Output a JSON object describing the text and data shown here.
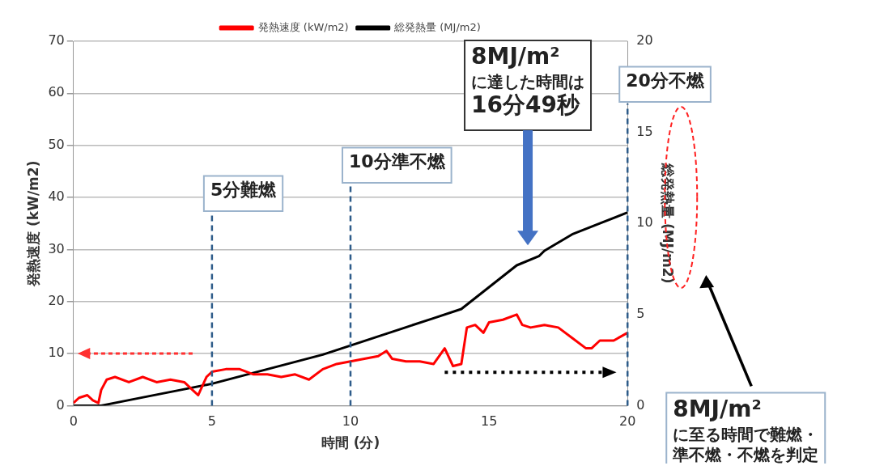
{
  "chart_data": {
    "type": "line",
    "xlabel": "時間 (分)",
    "ylabel": "発熱速度 (kW/m2)",
    "y2label": "総発熱量 (MJ/m2)",
    "xlim": [
      0,
      20
    ],
    "xticks": [
      0,
      5,
      10,
      15,
      20
    ],
    "ylim": [
      0,
      70
    ],
    "yticks": [
      0,
      10,
      20,
      30,
      40,
      50,
      60,
      70
    ],
    "y2lim": [
      0,
      20
    ],
    "y2ticks": [
      0,
      5,
      10,
      15,
      20
    ],
    "series": [
      {
        "name": "発熱速度 (kW/m2)",
        "color": "#ff0000",
        "axis": "y",
        "x": [
          0,
          0.2,
          0.5,
          0.7,
          0.9,
          1.0,
          1.2,
          1.5,
          2,
          2.5,
          3,
          3.5,
          4,
          4.3,
          4.5,
          4.8,
          5,
          5.5,
          6,
          6.5,
          7,
          7.5,
          8,
          8.5,
          9,
          9.5,
          10,
          10.5,
          11,
          11.3,
          11.5,
          12,
          12.5,
          13,
          13.4,
          13.7,
          14,
          14.2,
          14.5,
          14.8,
          15,
          15.5,
          16,
          16.2,
          16.5,
          17,
          17.5,
          18,
          18.5,
          18.7,
          19,
          19.5,
          20
        ],
        "values": [
          0.5,
          1.5,
          2,
          1,
          0.5,
          3,
          5,
          5.5,
          4.5,
          5.5,
          4.5,
          5,
          4.5,
          3,
          2,
          5.5,
          6.5,
          7,
          7,
          6,
          6,
          5.5,
          6,
          5,
          7,
          8,
          8.5,
          9,
          9.5,
          10.5,
          9,
          8.5,
          8.5,
          8,
          11,
          7.6,
          8,
          15,
          15.5,
          14,
          16,
          16.5,
          17.5,
          15.5,
          15,
          15.5,
          15,
          13,
          11,
          11,
          12.5,
          12.5,
          14
        ]
      },
      {
        "name": "総発熱量 (MJ/m2)",
        "color": "#000000",
        "axis": "y2",
        "x": [
          0,
          1,
          2,
          3,
          4,
          5,
          6,
          7,
          8,
          9,
          10,
          11,
          12,
          13,
          14,
          15,
          16,
          16.8,
          17,
          18,
          19,
          20
        ],
        "values": [
          0,
          0,
          0.3,
          0.6,
          0.9,
          1.2,
          1.6,
          2.0,
          2.4,
          2.8,
          3.3,
          3.8,
          4.3,
          4.8,
          5.3,
          6.5,
          7.7,
          8.2,
          8.5,
          9.4,
          10.0,
          10.6
        ]
      }
    ],
    "ref_lines": [
      {
        "axis": "x",
        "value": 5,
        "label": "5分難燃",
        "color": "#2e5c8a",
        "line_style": "dashed"
      },
      {
        "axis": "x",
        "value": 10,
        "label": "10分準不燃",
        "color": "#2e5c8a",
        "line_style": "dashed"
      },
      {
        "axis": "x",
        "value": 20,
        "label": "20分不燃",
        "color": "#2e5c8a",
        "line_style": "dashed"
      }
    ],
    "annotations": [
      "8MJ/m²に達した時間は16分49秒",
      "8MJ/m²に至る時間で難燃・準不燃・不燃を判定"
    ],
    "grid": "y",
    "legend": "top",
    "marker": "none",
    "line_style": "solid"
  }
}
